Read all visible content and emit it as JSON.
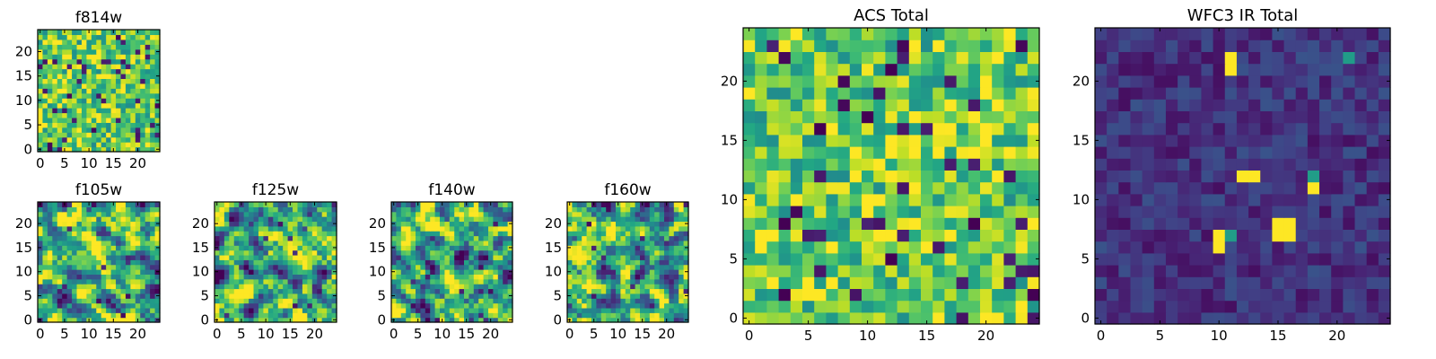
{
  "chart_data": [
    {
      "type": "heatmap",
      "title": "f814w",
      "xlabel": "",
      "ylabel": "",
      "xlim": [
        -0.5,
        24.5
      ],
      "ylim": [
        -0.5,
        24.5
      ],
      "x_ticks": [
        0,
        5,
        10,
        15,
        20
      ],
      "y_ticks": [
        0,
        5,
        10,
        15,
        20
      ],
      "grid": false,
      "colormap": "viridis",
      "seed": 814,
      "style": "noisy-high",
      "grid_size": 25
    },
    {
      "type": "heatmap",
      "title": "f105w",
      "xlabel": "",
      "ylabel": "",
      "xlim": [
        -0.5,
        24.5
      ],
      "ylim": [
        -0.5,
        24.5
      ],
      "x_ticks": [
        0,
        5,
        10,
        15,
        20
      ],
      "y_ticks": [
        0,
        5,
        10,
        15,
        20
      ],
      "grid": false,
      "colormap": "viridis",
      "seed": 105,
      "style": "smooth-high",
      "grid_size": 25
    },
    {
      "type": "heatmap",
      "title": "f125w",
      "xlabel": "",
      "ylabel": "",
      "xlim": [
        -0.5,
        24.5
      ],
      "ylim": [
        -0.5,
        24.5
      ],
      "x_ticks": [
        0,
        5,
        10,
        15,
        20
      ],
      "y_ticks": [
        0,
        5,
        10,
        15,
        20
      ],
      "grid": false,
      "colormap": "viridis",
      "seed": 125,
      "style": "smooth-high",
      "grid_size": 25
    },
    {
      "type": "heatmap",
      "title": "f140w",
      "xlabel": "",
      "ylabel": "",
      "xlim": [
        -0.5,
        24.5
      ],
      "ylim": [
        -0.5,
        24.5
      ],
      "x_ticks": [
        0,
        5,
        10,
        15,
        20
      ],
      "y_ticks": [
        0,
        5,
        10,
        15,
        20
      ],
      "grid": false,
      "colormap": "viridis",
      "seed": 140,
      "style": "smooth-high",
      "grid_size": 25
    },
    {
      "type": "heatmap",
      "title": "f160w",
      "xlabel": "",
      "ylabel": "",
      "xlim": [
        -0.5,
        24.5
      ],
      "ylim": [
        -0.5,
        24.5
      ],
      "x_ticks": [
        0,
        5,
        10,
        15,
        20
      ],
      "y_ticks": [
        0,
        5,
        10,
        15,
        20
      ],
      "grid": false,
      "colormap": "viridis",
      "seed": 160,
      "style": "smooth-high",
      "grid_size": 25
    },
    {
      "type": "heatmap",
      "title": "ACS Total",
      "xlabel": "",
      "ylabel": "",
      "xlim": [
        -0.5,
        24.5
      ],
      "ylim": [
        -0.5,
        24.5
      ],
      "x_ticks": [
        0,
        5,
        10,
        15,
        20
      ],
      "y_ticks": [
        0,
        5,
        10,
        15,
        20
      ],
      "grid": false,
      "colormap": "viridis",
      "seed": 2024,
      "style": "noisy-high",
      "grid_size": 25,
      "dark_cells": [
        [
          3,
          8
        ],
        [
          12,
          5
        ],
        [
          19,
          8
        ],
        [
          24,
          2
        ],
        [
          6,
          16
        ],
        [
          12,
          21
        ],
        [
          10,
          17
        ],
        [
          3,
          2
        ]
      ]
    },
    {
      "type": "heatmap",
      "title": "WFC3 IR Total",
      "xlabel": "",
      "ylabel": "",
      "xlim": [
        -0.5,
        24.5
      ],
      "ylim": [
        -0.5,
        24.5
      ],
      "x_ticks": [
        0,
        5,
        10,
        15,
        20
      ],
      "y_ticks": [
        0,
        5,
        10,
        15,
        20
      ],
      "grid": false,
      "colormap": "viridis",
      "seed": 3030,
      "style": "dark",
      "grid_size": 25,
      "bright_cells": [
        [
          11,
          21
        ],
        [
          11,
          22
        ],
        [
          12,
          12
        ],
        [
          13,
          12
        ],
        [
          15,
          7
        ],
        [
          16,
          7
        ],
        [
          15,
          8
        ],
        [
          16,
          8
        ],
        [
          10,
          6
        ],
        [
          18,
          11
        ],
        [
          10,
          7
        ]
      ],
      "mid_cells": [
        [
          11,
          7
        ],
        [
          18,
          12
        ],
        [
          21,
          22
        ]
      ]
    }
  ]
}
